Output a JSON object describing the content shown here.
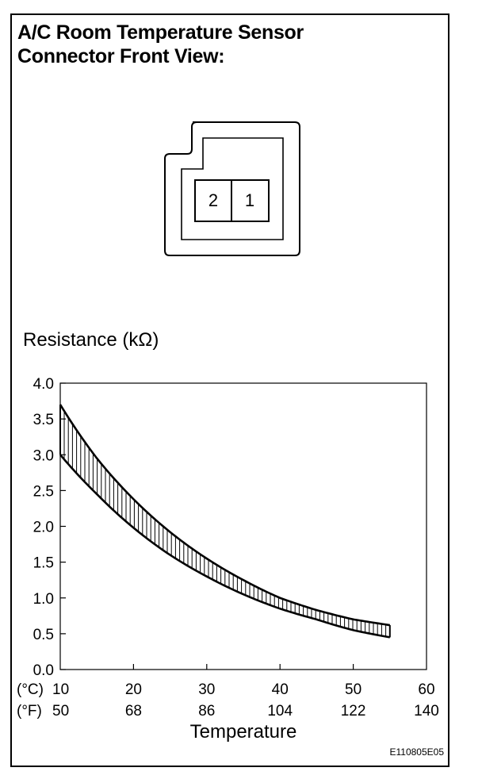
{
  "title": {
    "line1": "A/C Room Temperature Sensor",
    "line2": "Connector Front View:"
  },
  "connector": {
    "pins": [
      "2",
      "1"
    ]
  },
  "chart_data": {
    "type": "area",
    "ylabel": "Resistance (kΩ)",
    "xlabel": "Temperature",
    "x_unit_primary": "(°C)",
    "x_unit_secondary": "(°F)",
    "x_ticks_c": [
      "10",
      "20",
      "30",
      "40",
      "50",
      "60"
    ],
    "x_ticks_f": [
      "50",
      "68",
      "86",
      "104",
      "122",
      "140"
    ],
    "y_ticks": [
      "0.0",
      "0.5",
      "1.0",
      "1.5",
      "2.0",
      "2.5",
      "3.0",
      "3.5",
      "4.0"
    ],
    "xlim": [
      10,
      60
    ],
    "ylim": [
      0,
      4.0
    ],
    "grid": false,
    "series": [
      {
        "values_x": [
          10,
          15,
          20,
          25,
          30,
          35,
          40,
          45,
          50,
          55
        ],
        "values": [
          3.7,
          2.95,
          2.38,
          1.92,
          1.55,
          1.25,
          1.0,
          0.83,
          0.7,
          0.62
        ]
      },
      {
        "values_x": [
          10,
          15,
          20,
          25,
          30,
          35,
          40,
          45,
          50,
          55
        ],
        "values": [
          3.0,
          2.45,
          1.98,
          1.6,
          1.3,
          1.05,
          0.85,
          0.7,
          0.55,
          0.45
        ]
      }
    ],
    "shading": "vertical-hatch between series"
  },
  "figure_code": "E110805E05"
}
